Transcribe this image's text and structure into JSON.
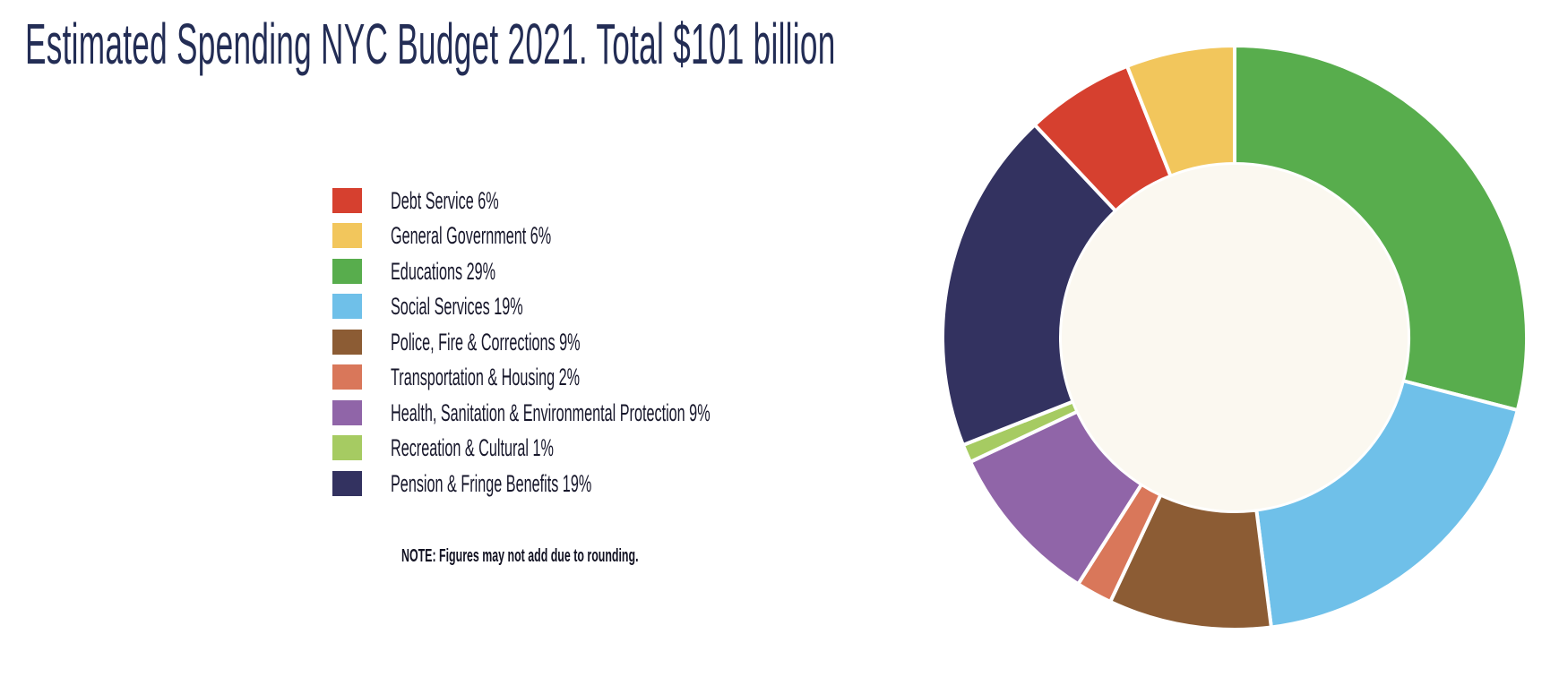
{
  "title": "Estimated Spending NYC Budget 2021. Total $101 billion",
  "note": "NOTE: Figures may not add due to rounding.",
  "chart_data": {
    "type": "pie",
    "subtype": "donut",
    "title": "Estimated Spending NYC Budget 2021. Total $101 billion",
    "total_label": "Total $101 billion",
    "categories": [
      "Debt Service",
      "General Government",
      "Educations",
      "Social Services",
      "Police, Fire & Corrections",
      "Transportation & Housing",
      "Health, Sanitation & Environmental Protection",
      "Recreation & Cultural",
      "Pension & Fringe Benefits"
    ],
    "values": [
      6,
      6,
      29,
      19,
      9,
      2,
      9,
      1,
      19
    ],
    "unit": "%",
    "colors": [
      "#D6402F",
      "#F2C65C",
      "#58AD4D",
      "#6FC0E9",
      "#8C5C34",
      "#D9775A",
      "#9065A8",
      "#A6CB62",
      "#333260"
    ],
    "legend_labels": [
      "Debt Service 6%",
      "General Government 6%",
      "Educations 29%",
      "Social Services 19%",
      "Police, Fire & Corrections 9%",
      "Transportation & Housing 2%",
      "Health, Sanitation & Environmental Protection 9%",
      "Recreation & Cultural 1%",
      "Pension & Fringe Benefits 19%"
    ],
    "draw_order_clockwise_from_top": [
      2,
      3,
      4,
      5,
      6,
      7,
      8,
      0,
      1
    ],
    "start_angle_deg_from_top": 0,
    "direction": "clockwise",
    "inner_radius_ratio": 0.59,
    "donut_hole_color": "#FBF8F0",
    "segment_separator_color": "#FFFFFF",
    "legend_position": "left-middle"
  },
  "style": {
    "title_color": "#232D55",
    "legend_text_color": "#17172B",
    "background_color": "#FFFFFF"
  }
}
